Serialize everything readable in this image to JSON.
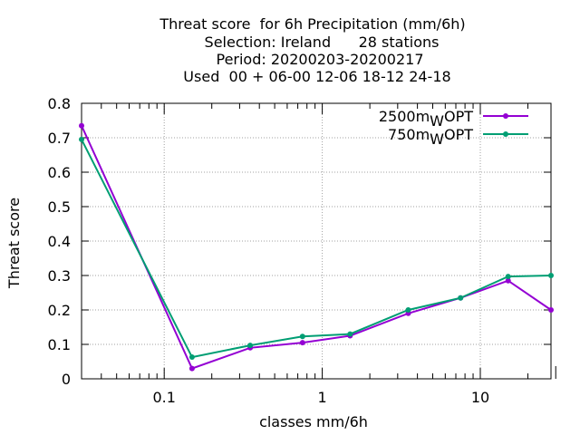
{
  "chart_data": {
    "type": "line",
    "title_lines": [
      "Threat score  for 6h Precipitation (mm/6h)",
      "Selection: Ireland      28 stations",
      "Period: 20200203-20200217",
      "Used  00 + 06-00 12-06 18-12 24-18"
    ],
    "xlabel": "classes mm/6h",
    "ylabel": "Threat score",
    "xscale": "log",
    "xlim": [
      0.03,
      28
    ],
    "ylim": [
      0,
      0.8
    ],
    "xticks": [
      0.1,
      1,
      10
    ],
    "xtick_labels": [
      "0.1",
      "1",
      "10"
    ],
    "yticks": [
      0,
      0.1,
      0.2,
      0.3,
      0.4,
      0.5,
      0.6,
      0.7,
      0.8
    ],
    "ytick_labels": [
      "0",
      "0.1",
      "0.2",
      "0.3",
      "0.4",
      "0.5",
      "0.6",
      "0.7",
      "0.8"
    ],
    "grid": true,
    "legend_position": "top-right",
    "series": [
      {
        "name": "2500m",
        "name_sub": "W",
        "name_suffix": "OPT",
        "color": "#9400d3",
        "x": [
          0.03,
          0.15,
          0.35,
          0.75,
          1.5,
          3.5,
          7.5,
          15,
          28
        ],
        "y": [
          0.735,
          0.03,
          0.09,
          0.105,
          0.125,
          0.19,
          0.235,
          0.285,
          0.2
        ]
      },
      {
        "name": "750m",
        "name_sub": "W",
        "name_suffix": "OPT",
        "color": "#009e73",
        "x": [
          0.03,
          0.15,
          0.35,
          0.75,
          1.5,
          3.5,
          7.5,
          15,
          28
        ],
        "y": [
          0.695,
          0.063,
          0.097,
          0.123,
          0.13,
          0.2,
          0.235,
          0.297,
          0.3
        ]
      }
    ]
  }
}
